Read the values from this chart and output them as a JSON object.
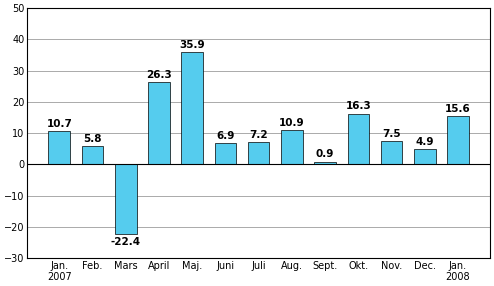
{
  "categories": [
    "Jan.\n2007",
    "Feb.",
    "Mars",
    "April",
    "Maj.",
    "Juni",
    "Juli",
    "Aug.",
    "Sept.",
    "Okt.",
    "Nov.",
    "Dec.",
    "Jan.\n2008"
  ],
  "values": [
    10.7,
    5.8,
    -22.4,
    26.3,
    35.9,
    6.9,
    7.2,
    10.9,
    0.9,
    16.3,
    7.5,
    4.9,
    15.6
  ],
  "bar_color": "#55CCEE",
  "bar_edge_color": "#000000",
  "ylim": [
    -30,
    50
  ],
  "yticks": [
    -30,
    -20,
    -10,
    0,
    10,
    20,
    30,
    40,
    50
  ],
  "grid_color": "#aaaaaa",
  "background_color": "#ffffff",
  "label_fontsize": 7.0,
  "value_fontsize": 7.5
}
